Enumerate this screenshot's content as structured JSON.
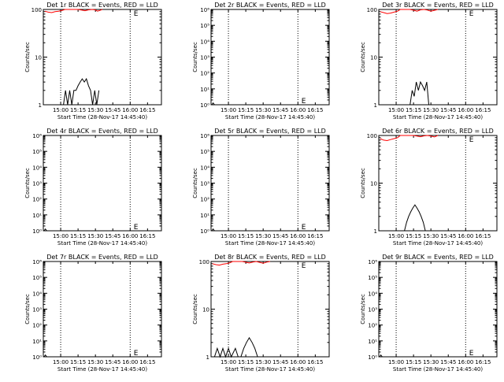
{
  "chart_data": [
    {
      "type": "line",
      "title": "Det 1r BLACK = Events, RED = LLD",
      "xlabel": "Start Time (28-Nov-17 14:45:40)",
      "ylabel": "Counts/sec",
      "yscale": "log",
      "ylim": [
        1,
        100
      ],
      "xlim": [
        14.75,
        16.45
      ],
      "x_ticks": [
        15.0,
        15.25,
        15.5,
        15.75,
        16.0,
        16.25
      ],
      "x_tick_labels": [
        "15:00",
        "15:15",
        "15:30",
        "15:45",
        "16:00",
        "16:15"
      ],
      "y_ticks": [
        1,
        10,
        100
      ],
      "y_tick_labels": [
        "1",
        "10",
        "100"
      ],
      "vlines": [
        15.0,
        16.0
      ],
      "marker_label": "E",
      "marker_at": [
        16.05,
        100
      ],
      "series": [
        {
          "color": "#000000",
          "x": [
            15.04,
            15.07,
            15.1,
            15.13,
            15.16,
            15.19,
            15.22,
            15.25,
            15.28,
            15.31,
            15.34,
            15.37,
            15.4,
            15.43,
            15.46,
            15.49,
            15.52,
            15.55
          ],
          "y": [
            1,
            2,
            1,
            2,
            1,
            2,
            2,
            2.5,
            3,
            3.5,
            3,
            3.5,
            2.5,
            2,
            1,
            2,
            1,
            2
          ]
        },
        {
          "color": "#ff0000",
          "x": [
            14.77,
            14.82,
            14.87,
            14.92,
            14.97,
            15.02,
            15.06,
            15.25,
            15.3,
            15.35,
            15.4,
            15.45,
            15.5,
            15.53,
            15.56,
            15.6
          ],
          "y": [
            92,
            88,
            86,
            90,
            92,
            95,
            100,
            100,
            97,
            94,
            98,
            100,
            98,
            92,
            95,
            100
          ]
        }
      ]
    },
    {
      "type": "line",
      "title": "Det 2r BLACK = Events, RED = LLD",
      "xlabel": "Start Time (28-Nov-17 14:45:40)",
      "ylabel": "Counts/sec",
      "yscale": "log",
      "ylim": [
        1,
        1000000
      ],
      "xlim": [
        14.75,
        16.45
      ],
      "x_ticks": [
        15.0,
        15.25,
        15.5,
        15.75,
        16.0,
        16.25
      ],
      "x_tick_labels": [
        "15:00",
        "15:15",
        "15:30",
        "15:45",
        "16:00",
        "16:15"
      ],
      "y_ticks": [
        1,
        10,
        100,
        1000,
        10000,
        100000,
        1000000
      ],
      "y_tick_labels": [
        "10⁰",
        "10¹",
        "10²",
        "10³",
        "10⁴",
        "10⁵",
        "10⁶"
      ],
      "vlines": [
        15.0,
        16.0
      ],
      "marker_label": "E",
      "marker_at": [
        16.05,
        1.4
      ],
      "series": [
        {
          "color": "#000000",
          "x": [
            14.76,
            14.78,
            14.8
          ],
          "y": [
            1,
            1.3,
            1
          ]
        }
      ]
    },
    {
      "type": "line",
      "title": "Det 3r BLACK = Events, RED = LLD",
      "xlabel": "Start Time (28-Nov-17 14:45:40)",
      "ylabel": "Counts/sec",
      "yscale": "log",
      "ylim": [
        1,
        100
      ],
      "xlim": [
        14.75,
        16.45
      ],
      "x_ticks": [
        15.0,
        15.25,
        15.5,
        15.75,
        16.0,
        16.25
      ],
      "x_tick_labels": [
        "15:00",
        "15:15",
        "15:30",
        "15:45",
        "16:00",
        "16:15"
      ],
      "y_ticks": [
        1,
        10,
        100
      ],
      "y_tick_labels": [
        "1",
        "10",
        "100"
      ],
      "vlines": [
        15.0,
        16.0
      ],
      "marker_label": "E",
      "marker_at": [
        16.05,
        100
      ],
      "series": [
        {
          "color": "#000000",
          "x": [
            15.03,
            15.2,
            15.23,
            15.26,
            15.29,
            15.32,
            15.35,
            15.38,
            15.41,
            15.44,
            15.47
          ],
          "y": [
            1,
            1,
            2,
            1.5,
            3,
            2,
            3,
            2.5,
            2,
            3,
            1
          ]
        },
        {
          "color": "#ff0000",
          "x": [
            14.77,
            14.82,
            14.87,
            14.92,
            14.97,
            15.02,
            15.06,
            15.2,
            15.26,
            15.3,
            15.35,
            15.4,
            15.45,
            15.5,
            15.55,
            15.6
          ],
          "y": [
            90,
            86,
            82,
            84,
            88,
            92,
            100,
            100,
            96,
            92,
            98,
            100,
            97,
            92,
            96,
            100
          ]
        }
      ]
    },
    {
      "type": "line",
      "title": "Det 4r BLACK = Events, RED = LLD",
      "xlabel": "Start Time (28-Nov-17 14:45:40)",
      "ylabel": "Counts/sec",
      "yscale": "log",
      "ylim": [
        1,
        1000000
      ],
      "xlim": [
        14.75,
        16.45
      ],
      "x_ticks": [
        15.0,
        15.25,
        15.5,
        15.75,
        16.0,
        16.25
      ],
      "x_tick_labels": [
        "15:00",
        "15:15",
        "15:30",
        "15:45",
        "16:00",
        "16:15"
      ],
      "y_ticks": [
        1,
        10,
        100,
        1000,
        10000,
        100000,
        1000000
      ],
      "y_tick_labels": [
        "10⁰",
        "10¹",
        "10²",
        "10³",
        "10⁴",
        "10⁵",
        "10⁶"
      ],
      "vlines": [
        15.0,
        16.0
      ],
      "marker_label": "E",
      "marker_at": [
        16.05,
        1.4
      ],
      "series": [
        {
          "color": "#000000",
          "x": [
            14.76,
            14.78,
            14.8
          ],
          "y": [
            1,
            1.3,
            1
          ]
        }
      ]
    },
    {
      "type": "line",
      "title": "Det 5r BLACK = Events, RED = LLD",
      "xlabel": "Start Time (28-Nov-17 14:45:40)",
      "ylabel": "Counts/sec",
      "yscale": "log",
      "ylim": [
        1,
        1000000
      ],
      "xlim": [
        14.75,
        16.45
      ],
      "x_ticks": [
        15.0,
        15.25,
        15.5,
        15.75,
        16.0,
        16.25
      ],
      "x_tick_labels": [
        "15:00",
        "15:15",
        "15:30",
        "15:45",
        "16:00",
        "16:15"
      ],
      "y_ticks": [
        1,
        10,
        100,
        1000,
        10000,
        100000,
        1000000
      ],
      "y_tick_labels": [
        "10⁰",
        "10¹",
        "10²",
        "10³",
        "10⁴",
        "10⁵",
        "10⁶"
      ],
      "vlines": [
        15.0,
        16.0
      ],
      "marker_label": "E",
      "marker_at": [
        16.05,
        1.4
      ],
      "series": [
        {
          "color": "#000000",
          "x": [
            14.76,
            14.78,
            14.8
          ],
          "y": [
            1,
            1.3,
            1
          ]
        }
      ]
    },
    {
      "type": "line",
      "title": "Det 6r BLACK = Events, RED = LLD",
      "xlabel": "Start Time (28-Nov-17 14:45:40)",
      "ylabel": "Counts/sec",
      "yscale": "log",
      "ylim": [
        1,
        100
      ],
      "xlim": [
        14.75,
        16.45
      ],
      "x_ticks": [
        15.0,
        15.25,
        15.5,
        15.75,
        16.0,
        16.25
      ],
      "x_tick_labels": [
        "15:00",
        "15:15",
        "15:30",
        "15:45",
        "16:00",
        "16:15"
      ],
      "y_ticks": [
        1,
        10,
        100
      ],
      "y_tick_labels": [
        "1",
        "10",
        "100"
      ],
      "vlines": [
        15.0,
        16.0
      ],
      "marker_label": "E",
      "marker_at": [
        16.05,
        100
      ],
      "series": [
        {
          "color": "#000000",
          "x": [
            15.12,
            15.15,
            15.18,
            15.21,
            15.24,
            15.27,
            15.3,
            15.33,
            15.36,
            15.39,
            15.42
          ],
          "y": [
            1,
            1.5,
            2,
            2.5,
            3,
            3.5,
            3,
            2.5,
            2,
            1.5,
            1
          ]
        },
        {
          "color": "#ff0000",
          "x": [
            14.77,
            14.82,
            14.87,
            14.92,
            14.97,
            15.02,
            15.06,
            15.25,
            15.3,
            15.35,
            15.4,
            15.45,
            15.5,
            15.55,
            15.6
          ],
          "y": [
            86,
            80,
            78,
            82,
            86,
            90,
            100,
            100,
            97,
            94,
            98,
            100,
            97,
            93,
            100
          ]
        }
      ]
    },
    {
      "type": "line",
      "title": "Det 7r BLACK = Events, RED = LLD",
      "xlabel": "Start Time (28-Nov-17 14:45:40)",
      "ylabel": "Counts/sec",
      "yscale": "log",
      "ylim": [
        1,
        1000000
      ],
      "xlim": [
        14.75,
        16.45
      ],
      "x_ticks": [
        15.0,
        15.25,
        15.5,
        15.75,
        16.0,
        16.25
      ],
      "x_tick_labels": [
        "15:00",
        "15:15",
        "15:30",
        "15:45",
        "16:00",
        "16:15"
      ],
      "y_ticks": [
        1,
        10,
        100,
        1000,
        10000,
        100000,
        1000000
      ],
      "y_tick_labels": [
        "10⁰",
        "10¹",
        "10²",
        "10³",
        "10⁴",
        "10⁵",
        "10⁶"
      ],
      "vlines": [
        15.0,
        16.0
      ],
      "marker_label": "E",
      "marker_at": [
        16.05,
        1.4
      ],
      "series": [
        {
          "color": "#000000",
          "x": [
            14.76,
            14.78,
            14.8
          ],
          "y": [
            1,
            1.3,
            1
          ]
        }
      ]
    },
    {
      "type": "line",
      "title": "Det 8r BLACK = Events, RED = LLD",
      "xlabel": "Start Time (28-Nov-17 14:45:40)",
      "ylabel": "Counts/sec",
      "yscale": "log",
      "ylim": [
        1,
        100
      ],
      "xlim": [
        14.75,
        16.45
      ],
      "x_ticks": [
        15.0,
        15.25,
        15.5,
        15.75,
        16.0,
        16.25
      ],
      "x_tick_labels": [
        "15:00",
        "15:15",
        "15:30",
        "15:45",
        "16:00",
        "16:15"
      ],
      "y_ticks": [
        1,
        10,
        100
      ],
      "y_tick_labels": [
        "1",
        "10",
        "100"
      ],
      "vlines": [
        15.0,
        16.0
      ],
      "marker_label": "E",
      "marker_at": [
        16.05,
        100
      ],
      "series": [
        {
          "color": "#000000",
          "x": [
            14.8,
            14.84,
            14.88,
            14.92,
            14.96,
            15.0,
            15.04,
            15.1,
            15.14,
            15.18,
            15.22,
            15.26,
            15.3,
            15.34,
            15.38,
            15.42,
            15.46
          ],
          "y": [
            1,
            1.5,
            1,
            1.5,
            1,
            1.5,
            1,
            1.5,
            1,
            1,
            1.5,
            2,
            2.5,
            2,
            1.5,
            1,
            1
          ]
        },
        {
          "color": "#ff0000",
          "x": [
            14.77,
            14.82,
            14.87,
            14.92,
            14.97,
            15.02,
            15.06,
            15.2,
            15.26,
            15.3,
            15.35,
            15.4,
            15.45,
            15.5,
            15.55,
            15.6
          ],
          "y": [
            90,
            86,
            84,
            88,
            90,
            94,
            100,
            100,
            96,
            93,
            97,
            100,
            96,
            92,
            97,
            100
          ]
        }
      ]
    },
    {
      "type": "line",
      "title": "Det 9r BLACK = Events, RED = LLD",
      "xlabel": "Start Time (28-Nov-17 14:45:40)",
      "ylabel": "Counts/sec",
      "yscale": "log",
      "ylim": [
        1,
        1000000
      ],
      "xlim": [
        14.75,
        16.45
      ],
      "x_ticks": [
        15.0,
        15.25,
        15.5,
        15.75,
        16.0,
        16.25
      ],
      "x_tick_labels": [
        "15:00",
        "15:15",
        "15:30",
        "15:45",
        "16:00",
        "16:15"
      ],
      "y_ticks": [
        1,
        10,
        100,
        1000,
        10000,
        100000,
        1000000
      ],
      "y_tick_labels": [
        "10⁰",
        "10¹",
        "10²",
        "10³",
        "10⁴",
        "10⁵",
        "10⁶"
      ],
      "vlines": [
        15.0,
        16.0
      ],
      "marker_label": "E",
      "marker_at": [
        16.05,
        1.4
      ],
      "series": [
        {
          "color": "#000000",
          "x": [
            14.76,
            14.78,
            14.8
          ],
          "y": [
            1,
            1.3,
            1
          ]
        }
      ]
    }
  ]
}
